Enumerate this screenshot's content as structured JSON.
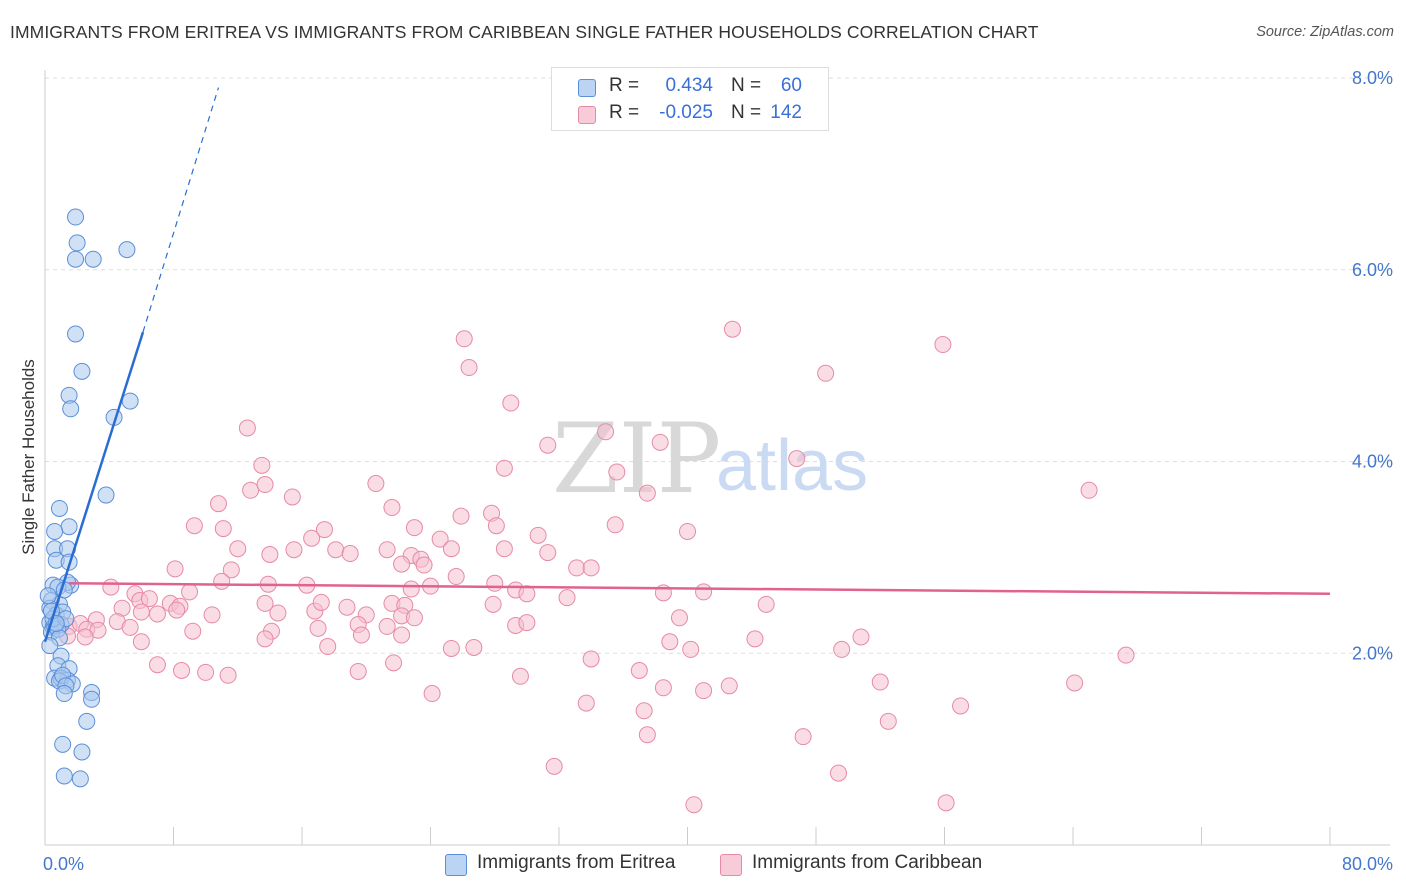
{
  "header": {
    "title": "IMMIGRANTS FROM ERITREA VS IMMIGRANTS FROM CARIBBEAN SINGLE FATHER HOUSEHOLDS CORRELATION CHART",
    "source": "Source: ZipAtlas.com"
  },
  "watermark": {
    "zip": "ZIP",
    "atlas": "atlas"
  },
  "legend": {
    "r_label": "R =",
    "n_label": "N =",
    "series": [
      {
        "r": "0.434",
        "n": "60"
      },
      {
        "r": "-0.025",
        "n": "142"
      }
    ]
  },
  "bottom_legend": {
    "eritrea": "Immigrants from Eritrea",
    "caribbean": "Immigrants from Caribbean"
  },
  "colors": {
    "eritrea_fill": "#a9c8ef",
    "eritrea_stroke": "#5b8fd8",
    "eritrea_line": "#2a6dd2",
    "caribbean_fill": "#f5bfd0",
    "caribbean_stroke": "#e68aa8",
    "caribbean_line": "#e0628e",
    "grid": "#dddddd",
    "tick_text": "#4477cc"
  },
  "chart_data": {
    "type": "scatter",
    "title": "IMMIGRANTS FROM ERITREA VS IMMIGRANTS FROM CARIBBEAN SINGLE FATHER HOUSEHOLDS CORRELATION CHART",
    "xlabel": "",
    "ylabel": "Single Father Households",
    "xlim": [
      0,
      80
    ],
    "ylim": [
      0,
      8
    ],
    "x_tick_labels": {
      "min": "0.0%",
      "max": "80.0%"
    },
    "y_ticks": [
      {
        "value": 2,
        "label": "2.0%"
      },
      {
        "value": 4,
        "label": "4.0%"
      },
      {
        "value": 6,
        "label": "6.0%"
      },
      {
        "value": 8,
        "label": "8.0%"
      }
    ],
    "series": [
      {
        "name": "Immigrants from Eritrea",
        "r": 0.434,
        "n": 60,
        "trend": {
          "x0": 0,
          "y0": 2.12,
          "x1": 6.1,
          "y1": 5.35,
          "dashed_to_x": 10.8,
          "dashed_to_y": 7.9
        },
        "points": [
          [
            1.9,
            6.55
          ],
          [
            2.0,
            6.28
          ],
          [
            1.9,
            6.11
          ],
          [
            3.0,
            6.11
          ],
          [
            5.1,
            6.21
          ],
          [
            1.9,
            5.33
          ],
          [
            2.3,
            4.94
          ],
          [
            1.5,
            4.69
          ],
          [
            1.6,
            4.55
          ],
          [
            5.3,
            4.63
          ],
          [
            4.3,
            4.46
          ],
          [
            3.8,
            3.65
          ],
          [
            0.9,
            3.51
          ],
          [
            1.5,
            3.32
          ],
          [
            0.6,
            3.27
          ],
          [
            0.6,
            3.09
          ],
          [
            1.4,
            3.09
          ],
          [
            0.7,
            2.97
          ],
          [
            1.5,
            2.95
          ],
          [
            1.6,
            2.71
          ],
          [
            1.4,
            2.74
          ],
          [
            0.5,
            2.71
          ],
          [
            0.8,
            2.69
          ],
          [
            0.4,
            2.55
          ],
          [
            0.9,
            2.51
          ],
          [
            1.2,
            2.66
          ],
          [
            0.3,
            2.47
          ],
          [
            0.7,
            2.4
          ],
          [
            1.1,
            2.43
          ],
          [
            0.3,
            2.32
          ],
          [
            0.5,
            2.27
          ],
          [
            1.0,
            2.3
          ],
          [
            0.4,
            2.22
          ],
          [
            0.6,
            2.29
          ],
          [
            0.8,
            2.25
          ],
          [
            0.9,
            2.16
          ],
          [
            0.3,
            2.08
          ],
          [
            1.0,
            1.97
          ],
          [
            0.8,
            1.87
          ],
          [
            1.5,
            1.84
          ],
          [
            0.6,
            1.74
          ],
          [
            1.0,
            1.74
          ],
          [
            1.4,
            1.72
          ],
          [
            0.9,
            1.71
          ],
          [
            1.1,
            1.77
          ],
          [
            1.7,
            1.68
          ],
          [
            1.3,
            1.66
          ],
          [
            2.9,
            1.59
          ],
          [
            1.2,
            1.58
          ],
          [
            2.9,
            1.52
          ],
          [
            2.6,
            1.29
          ],
          [
            1.1,
            1.05
          ],
          [
            2.3,
            0.97
          ],
          [
            1.2,
            0.72
          ],
          [
            2.2,
            0.69
          ],
          [
            0.5,
            2.36
          ],
          [
            0.2,
            2.6
          ],
          [
            0.4,
            2.44
          ],
          [
            1.3,
            2.36
          ],
          [
            0.7,
            2.31
          ]
        ]
      },
      {
        "name": "Immigrants from Caribbean",
        "r": -0.025,
        "n": 142,
        "trend": {
          "x0": 1.5,
          "y0": 2.73,
          "x1": 80,
          "y1": 2.62
        },
        "points": [
          [
            42.8,
            5.38
          ],
          [
            26.1,
            5.28
          ],
          [
            55.9,
            5.22
          ],
          [
            26.4,
            4.98
          ],
          [
            48.6,
            4.92
          ],
          [
            29.0,
            4.61
          ],
          [
            12.6,
            4.35
          ],
          [
            34.9,
            4.31
          ],
          [
            38.3,
            4.2
          ],
          [
            31.3,
            4.17
          ],
          [
            13.5,
            3.96
          ],
          [
            46.8,
            4.03
          ],
          [
            28.6,
            3.93
          ],
          [
            35.6,
            3.89
          ],
          [
            65.0,
            3.7
          ],
          [
            20.6,
            3.77
          ],
          [
            12.8,
            3.7
          ],
          [
            13.7,
            3.76
          ],
          [
            10.8,
            3.56
          ],
          [
            15.4,
            3.63
          ],
          [
            37.5,
            3.67
          ],
          [
            21.6,
            3.52
          ],
          [
            27.8,
            3.46
          ],
          [
            25.9,
            3.43
          ],
          [
            9.3,
            3.33
          ],
          [
            11.1,
            3.3
          ],
          [
            17.4,
            3.29
          ],
          [
            23.0,
            3.31
          ],
          [
            28.1,
            3.33
          ],
          [
            35.5,
            3.34
          ],
          [
            40.0,
            3.27
          ],
          [
            30.7,
            3.23
          ],
          [
            16.6,
            3.2
          ],
          [
            24.6,
            3.19
          ],
          [
            12.0,
            3.09
          ],
          [
            15.5,
            3.08
          ],
          [
            18.1,
            3.08
          ],
          [
            19.0,
            3.04
          ],
          [
            21.3,
            3.08
          ],
          [
            22.8,
            3.02
          ],
          [
            25.3,
            3.09
          ],
          [
            28.6,
            3.09
          ],
          [
            31.3,
            3.05
          ],
          [
            14.0,
            3.03
          ],
          [
            23.4,
            2.98
          ],
          [
            22.2,
            2.93
          ],
          [
            23.6,
            2.92
          ],
          [
            33.1,
            2.89
          ],
          [
            34.0,
            2.89
          ],
          [
            8.1,
            2.88
          ],
          [
            11.6,
            2.87
          ],
          [
            25.6,
            2.8
          ],
          [
            11.0,
            2.75
          ],
          [
            13.9,
            2.72
          ],
          [
            16.3,
            2.71
          ],
          [
            24.0,
            2.7
          ],
          [
            22.8,
            2.67
          ],
          [
            28.0,
            2.73
          ],
          [
            29.3,
            2.66
          ],
          [
            41.0,
            2.64
          ],
          [
            4.1,
            2.69
          ],
          [
            5.6,
            2.62
          ],
          [
            5.9,
            2.55
          ],
          [
            6.5,
            2.57
          ],
          [
            7.8,
            2.52
          ],
          [
            8.4,
            2.49
          ],
          [
            9.0,
            2.64
          ],
          [
            10.4,
            2.4
          ],
          [
            13.7,
            2.52
          ],
          [
            18.8,
            2.48
          ],
          [
            21.6,
            2.52
          ],
          [
            22.4,
            2.5
          ],
          [
            27.9,
            2.51
          ],
          [
            30.0,
            2.62
          ],
          [
            38.5,
            2.63
          ],
          [
            44.9,
            2.51
          ],
          [
            4.8,
            2.47
          ],
          [
            6.0,
            2.43
          ],
          [
            7.0,
            2.41
          ],
          [
            8.2,
            2.45
          ],
          [
            14.5,
            2.42
          ],
          [
            16.8,
            2.44
          ],
          [
            20.0,
            2.4
          ],
          [
            22.2,
            2.39
          ],
          [
            23.0,
            2.37
          ],
          [
            1.5,
            2.28
          ],
          [
            2.2,
            2.31
          ],
          [
            3.2,
            2.35
          ],
          [
            4.5,
            2.33
          ],
          [
            2.6,
            2.25
          ],
          [
            3.3,
            2.24
          ],
          [
            5.3,
            2.27
          ],
          [
            1.4,
            2.18
          ],
          [
            2.5,
            2.17
          ],
          [
            17.0,
            2.26
          ],
          [
            19.5,
            2.3
          ],
          [
            21.3,
            2.28
          ],
          [
            29.3,
            2.29
          ],
          [
            30.0,
            2.32
          ],
          [
            39.5,
            2.37
          ],
          [
            50.8,
            2.17
          ],
          [
            9.2,
            2.23
          ],
          [
            14.1,
            2.23
          ],
          [
            13.7,
            2.15
          ],
          [
            19.7,
            2.19
          ],
          [
            22.2,
            2.19
          ],
          [
            38.9,
            2.12
          ],
          [
            40.2,
            2.04
          ],
          [
            44.2,
            2.15
          ],
          [
            6.0,
            2.12
          ],
          [
            17.6,
            2.07
          ],
          [
            25.3,
            2.05
          ],
          [
            26.7,
            2.06
          ],
          [
            49.6,
            2.04
          ],
          [
            67.3,
            1.98
          ],
          [
            7.0,
            1.88
          ],
          [
            8.5,
            1.82
          ],
          [
            10.0,
            1.8
          ],
          [
            11.4,
            1.77
          ],
          [
            19.5,
            1.81
          ],
          [
            21.7,
            1.9
          ],
          [
            29.6,
            1.76
          ],
          [
            34.0,
            1.94
          ],
          [
            37.0,
            1.82
          ],
          [
            38.5,
            1.64
          ],
          [
            42.6,
            1.66
          ],
          [
            52.0,
            1.7
          ],
          [
            64.1,
            1.69
          ],
          [
            24.1,
            1.58
          ],
          [
            33.7,
            1.48
          ],
          [
            41.0,
            1.61
          ],
          [
            37.3,
            1.4
          ],
          [
            57.0,
            1.45
          ],
          [
            37.5,
            1.15
          ],
          [
            47.2,
            1.13
          ],
          [
            52.5,
            1.29
          ],
          [
            31.7,
            0.82
          ],
          [
            49.4,
            0.75
          ],
          [
            56.1,
            0.44
          ],
          [
            40.4,
            0.42
          ],
          [
            32.5,
            2.58
          ],
          [
            17.2,
            2.53
          ]
        ]
      }
    ]
  }
}
